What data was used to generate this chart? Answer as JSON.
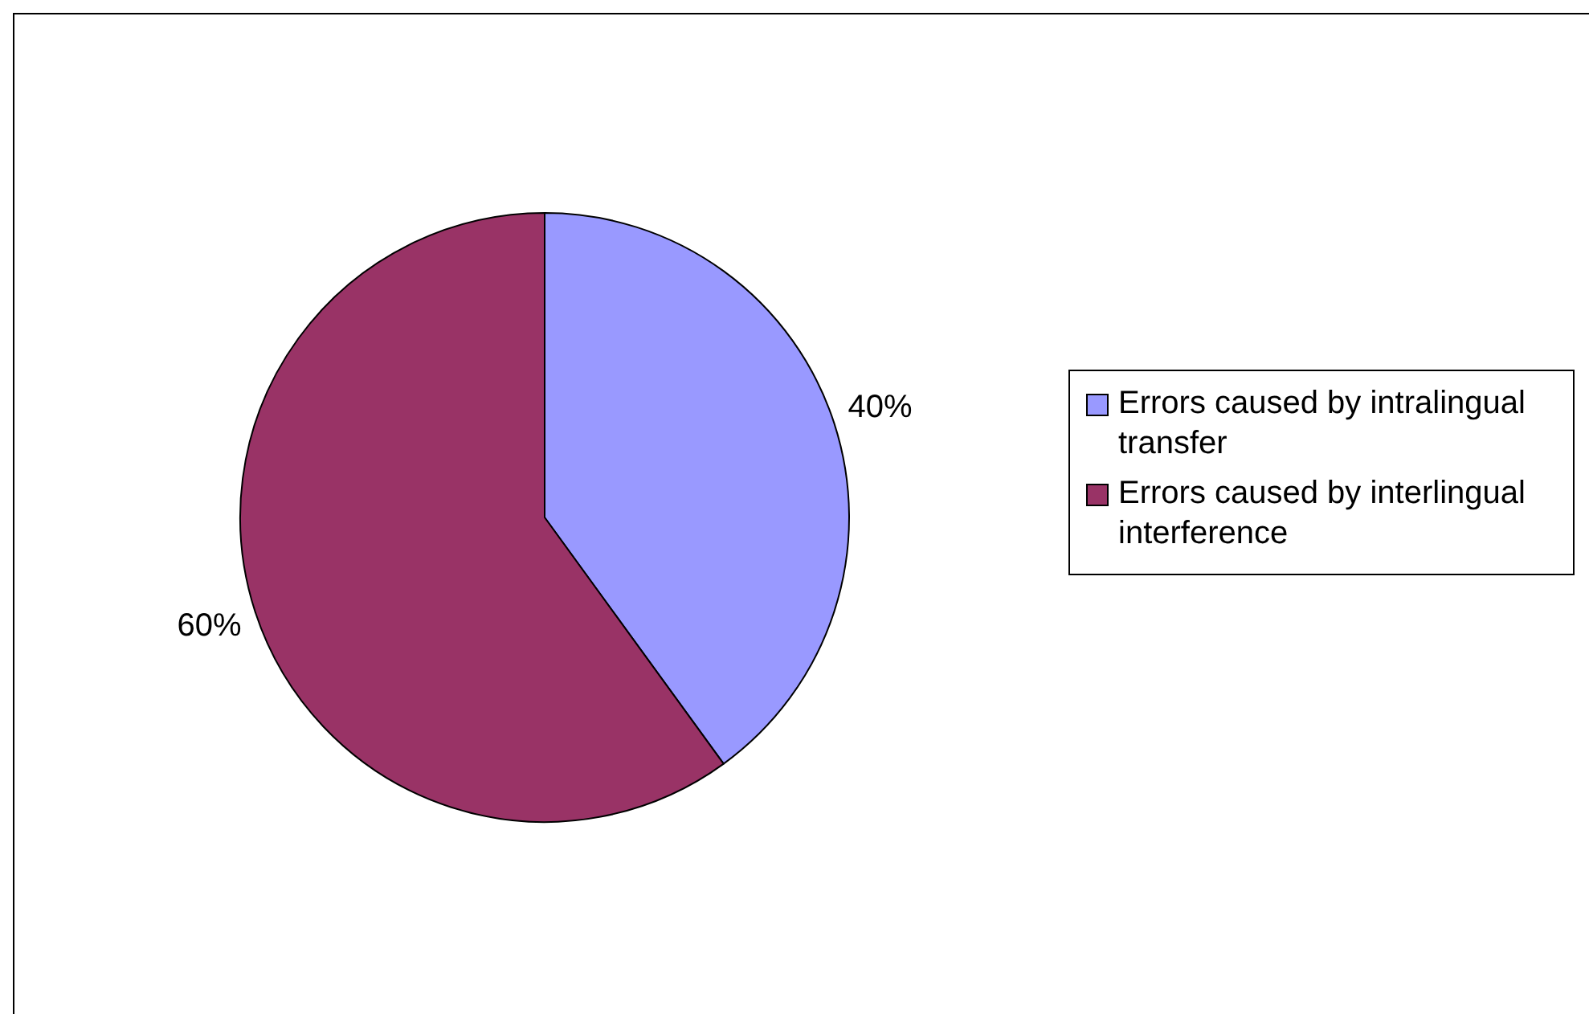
{
  "chart_data": {
    "type": "pie",
    "categories": [
      "Errors caused by intralingual transfer",
      "Errors caused by interlingual interference"
    ],
    "values": [
      40,
      60
    ],
    "colors": [
      "#9999ff",
      "#993366"
    ],
    "value_labels": [
      "40%",
      "60%"
    ],
    "legend": "right"
  }
}
